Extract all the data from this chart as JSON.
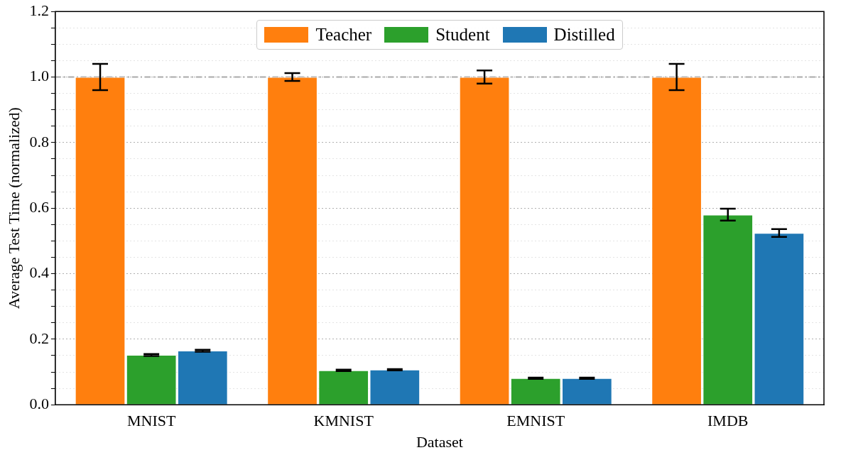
{
  "chart_data": {
    "type": "bar",
    "xlabel": "Dataset",
    "ylabel": "Average Test Time (normalized)",
    "categories": [
      "MNIST",
      "KMNIST",
      "EMNIST",
      "IMDB"
    ],
    "series": [
      {
        "name": "Teacher",
        "color": "#ff7f0e",
        "values": [
          1.0,
          1.0,
          1.0,
          1.0
        ],
        "errors": [
          0.04,
          0.012,
          0.02,
          0.04
        ]
      },
      {
        "name": "Student",
        "color": "#2ca02c",
        "values": [
          0.152,
          0.105,
          0.081,
          0.58
        ],
        "errors": [
          0.003,
          0.002,
          0.002,
          0.018
        ]
      },
      {
        "name": "Distilled",
        "color": "#1f77b4",
        "values": [
          0.165,
          0.107,
          0.081,
          0.524
        ],
        "errors": [
          0.003,
          0.002,
          0.002,
          0.012
        ]
      }
    ],
    "ylim": [
      0,
      1.2
    ],
    "yticks": [
      {
        "value": 0,
        "label": "0.0"
      },
      {
        "value": 0.05,
        "label": null
      },
      {
        "value": 0.1,
        "label": null
      },
      {
        "value": 0.15,
        "label": null
      },
      {
        "value": 0.2,
        "label": "0.2"
      },
      {
        "value": 0.25,
        "label": null
      },
      {
        "value": 0.3,
        "label": null
      },
      {
        "value": 0.35,
        "label": null
      },
      {
        "value": 0.4,
        "label": "0.4"
      },
      {
        "value": 0.45,
        "label": null
      },
      {
        "value": 0.5,
        "label": null
      },
      {
        "value": 0.55,
        "label": null
      },
      {
        "value": 0.6,
        "label": "0.6"
      },
      {
        "value": 0.65,
        "label": null
      },
      {
        "value": 0.7,
        "label": null
      },
      {
        "value": 0.75,
        "label": null
      },
      {
        "value": 0.8,
        "label": "0.8"
      },
      {
        "value": 0.85,
        "label": null
      },
      {
        "value": 0.9,
        "label": null
      },
      {
        "value": 0.95,
        "label": null
      },
      {
        "value": 1.0,
        "label": "1.0"
      },
      {
        "value": 1.05,
        "label": null
      },
      {
        "value": 1.1,
        "label": null
      },
      {
        "value": 1.15,
        "label": null
      },
      {
        "value": 1.2,
        "label": "1.2"
      }
    ],
    "ref_lines": [
      {
        "axis": "y",
        "value": 1.0,
        "color": "#aaaaaa",
        "line_style": "dashdot"
      }
    ],
    "grid": "y",
    "legend": "top"
  }
}
